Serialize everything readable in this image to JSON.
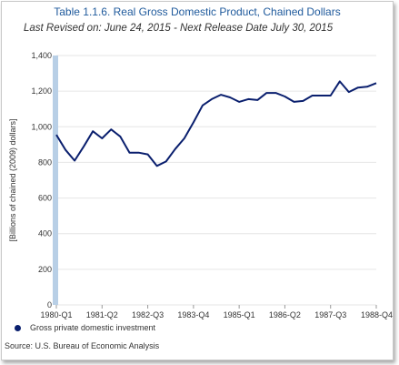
{
  "title": "Table 1.1.6. Real Gross Domestic Product, Chained Dollars",
  "subtitle": "Last Revised on: June 24, 2015 - Next Release Date July 30, 2015",
  "source": "Source: U.S. Bureau of Economic  Analysis",
  "colors": {
    "series": "#0a1f6e",
    "highlight_band": "#b8cfe6",
    "grid": "#e6e6e6",
    "axis_text": "#333333",
    "title": "#1f5a9c"
  },
  "chart_data": {
    "type": "line",
    "ylabel": "[Billions of chained (2009) dollars]",
    "xlabel": "",
    "ylim": [
      0,
      1400
    ],
    "yticks": [
      0,
      200,
      400,
      600,
      800,
      "1,000",
      "1,200",
      "1,400"
    ],
    "ytick_values": [
      0,
      200,
      400,
      600,
      800,
      1000,
      1200,
      1400
    ],
    "x_tick_labels": [
      "1980-Q1",
      "1981-Q2",
      "1982-Q3",
      "1983-Q4",
      "1985-Q1",
      "1986-Q2",
      "1987-Q3",
      "1988-Q4"
    ],
    "x_tick_indices": [
      0,
      5,
      10,
      15,
      20,
      25,
      30,
      35
    ],
    "grid": true,
    "legend_position": "bottom-left",
    "x": [
      "1980-Q1",
      "1980-Q2",
      "1980-Q3",
      "1980-Q4",
      "1981-Q1",
      "1981-Q2",
      "1981-Q3",
      "1981-Q4",
      "1982-Q1",
      "1982-Q2",
      "1982-Q3",
      "1982-Q4",
      "1983-Q1",
      "1983-Q2",
      "1983-Q3",
      "1983-Q4",
      "1984-Q1",
      "1984-Q2",
      "1984-Q3",
      "1984-Q4",
      "1985-Q1",
      "1985-Q2",
      "1985-Q3",
      "1985-Q4",
      "1986-Q1",
      "1986-Q2",
      "1986-Q3",
      "1986-Q4",
      "1987-Q1",
      "1987-Q2",
      "1987-Q3",
      "1987-Q4",
      "1988-Q1",
      "1988-Q2",
      "1988-Q3",
      "1988-Q4"
    ],
    "series": [
      {
        "name": "Gross private domestic investment",
        "values": [
          955,
          870,
          810,
          890,
          975,
          935,
          985,
          945,
          855,
          855,
          845,
          780,
          805,
          875,
          935,
          1025,
          1120,
          1155,
          1180,
          1165,
          1140,
          1155,
          1150,
          1190,
          1190,
          1170,
          1140,
          1145,
          1175,
          1175,
          1175,
          1255,
          1195,
          1220,
          1225,
          1245
        ]
      }
    ]
  }
}
